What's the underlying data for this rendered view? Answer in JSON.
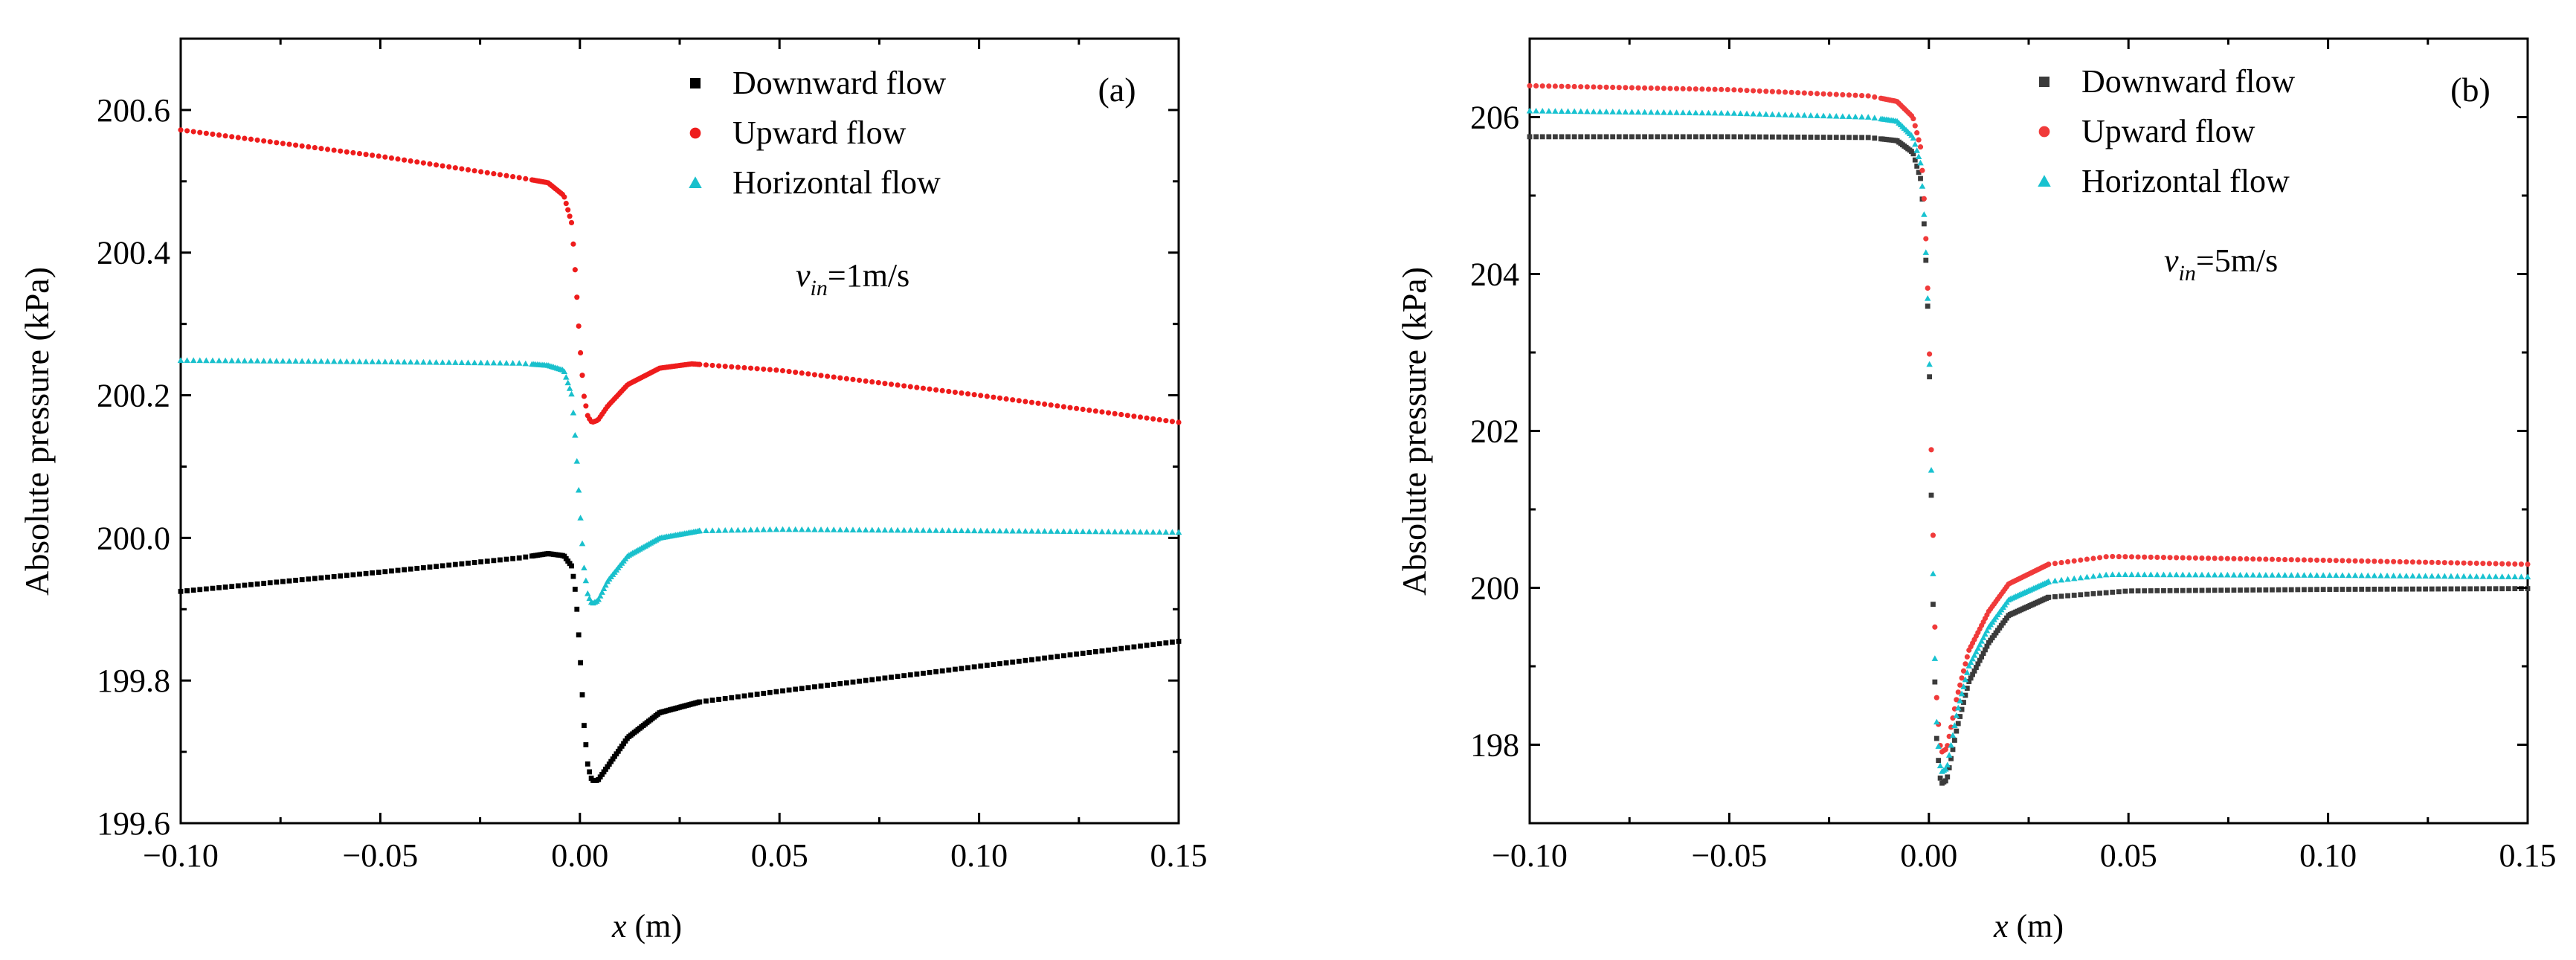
{
  "figure": {
    "panels": [
      {
        "panel_label": "(a)",
        "annotation": {
          "v": "v",
          "sub": "in",
          "rest": "=1m/s"
        },
        "yticks": [
          "199.6",
          "199.8",
          "200.0",
          "200.2",
          "200.4",
          "200.6"
        ],
        "xticks": [
          "−0.10",
          "−0.05",
          "0.00",
          "0.05",
          "0.10",
          "0.15"
        ]
      },
      {
        "panel_label": "(b)",
        "annotation": {
          "v": "v",
          "sub": "in",
          "rest": "=5m/s"
        },
        "yticks": [
          "198",
          "200",
          "202",
          "204",
          "206"
        ],
        "xticks": [
          "−0.10",
          "−0.05",
          "0.00",
          "0.05",
          "0.10",
          "0.15"
        ]
      }
    ]
  },
  "chart_data": [
    {
      "type": "scatter",
      "title": "",
      "xlabel": "x (m)",
      "ylabel": "Absolute pressure (kPa)",
      "xlim": [
        -0.1,
        0.15
      ],
      "ylim": [
        199.6,
        200.7
      ],
      "grid": false,
      "legend_position": "top-right",
      "series": [
        {
          "name": "Downward flow",
          "color": "#000000",
          "marker": "square",
          "points": [
            [
              -0.1,
              199.925
            ],
            [
              -0.05,
              199.952
            ],
            [
              -0.015,
              199.972
            ],
            [
              -0.008,
              199.978
            ],
            [
              -0.004,
              199.975
            ],
            [
              -0.002,
              199.96
            ],
            [
              -0.001,
              199.92
            ],
            [
              0.0,
              199.84
            ],
            [
              0.001,
              199.74
            ],
            [
              0.002,
              199.68
            ],
            [
              0.003,
              199.66
            ],
            [
              0.0045,
              199.66
            ],
            [
              0.007,
              199.68
            ],
            [
              0.012,
              199.72
            ],
            [
              0.02,
              199.755
            ],
            [
              0.03,
              199.77
            ],
            [
              0.05,
              199.785
            ],
            [
              0.1,
              199.82
            ],
            [
              0.15,
              199.855
            ]
          ]
        },
        {
          "name": "Upward flow",
          "color": "#ee1c1c",
          "marker": "circle",
          "points": [
            [
              -0.1,
              200.572
            ],
            [
              -0.05,
              200.535
            ],
            [
              -0.015,
              200.505
            ],
            [
              -0.008,
              200.498
            ],
            [
              -0.004,
              200.48
            ],
            [
              -0.002,
              200.44
            ],
            [
              -0.001,
              200.36
            ],
            [
              0.0,
              200.27
            ],
            [
              0.001,
              200.2
            ],
            [
              0.002,
              200.17
            ],
            [
              0.003,
              200.162
            ],
            [
              0.0045,
              200.165
            ],
            [
              0.007,
              200.185
            ],
            [
              0.012,
              200.215
            ],
            [
              0.02,
              200.238
            ],
            [
              0.028,
              200.244
            ],
            [
              0.05,
              200.235
            ],
            [
              0.1,
              200.2
            ],
            [
              0.15,
              200.162
            ]
          ]
        },
        {
          "name": "Horizontal flow",
          "color": "#19c0cc",
          "marker": "triangle",
          "points": [
            [
              -0.1,
              200.249
            ],
            [
              -0.05,
              200.247
            ],
            [
              -0.015,
              200.245
            ],
            [
              -0.008,
              200.242
            ],
            [
              -0.004,
              200.235
            ],
            [
              -0.002,
              200.2
            ],
            [
              -0.001,
              200.13
            ],
            [
              0.0,
              200.04
            ],
            [
              0.001,
              199.96
            ],
            [
              0.002,
              199.92
            ],
            [
              0.003,
              199.908
            ],
            [
              0.0045,
              199.912
            ],
            [
              0.007,
              199.94
            ],
            [
              0.012,
              199.975
            ],
            [
              0.02,
              200.0
            ],
            [
              0.03,
              200.01
            ],
            [
              0.05,
              200.012
            ],
            [
              0.1,
              200.01
            ],
            [
              0.15,
              200.008
            ]
          ]
        }
      ]
    },
    {
      "type": "scatter",
      "title": "",
      "xlabel": "x (m)",
      "ylabel": "Absolute pressure (kPa)",
      "xlim": [
        -0.1,
        0.15
      ],
      "ylim": [
        197,
        207
      ],
      "grid": false,
      "legend_position": "top-right",
      "series": [
        {
          "name": "Downward flow",
          "color": "#3b3b3b",
          "marker": "square",
          "points": [
            [
              -0.1,
              205.75
            ],
            [
              -0.05,
              205.75
            ],
            [
              -0.015,
              205.74
            ],
            [
              -0.008,
              205.7
            ],
            [
              -0.004,
              205.55
            ],
            [
              -0.002,
              205.2
            ],
            [
              -0.001,
              204.5
            ],
            [
              0.0,
              203.2
            ],
            [
              0.0005,
              201.5
            ],
            [
              0.001,
              199.9
            ],
            [
              0.0015,
              198.8
            ],
            [
              0.002,
              198.0
            ],
            [
              0.003,
              197.5
            ],
            [
              0.0045,
              197.55
            ],
            [
              0.007,
              198.2
            ],
            [
              0.01,
              198.8
            ],
            [
              0.015,
              199.3
            ],
            [
              0.02,
              199.65
            ],
            [
              0.03,
              199.88
            ],
            [
              0.05,
              199.96
            ],
            [
              0.1,
              199.98
            ],
            [
              0.15,
              199.99
            ]
          ]
        },
        {
          "name": "Upward flow",
          "color": "#f03a3a",
          "marker": "circle",
          "points": [
            [
              -0.1,
              206.4
            ],
            [
              -0.05,
              206.35
            ],
            [
              -0.015,
              206.27
            ],
            [
              -0.008,
              206.2
            ],
            [
              -0.004,
              206.0
            ],
            [
              -0.002,
              205.6
            ],
            [
              -0.001,
              204.8
            ],
            [
              0.0,
              203.4
            ],
            [
              0.0005,
              202.0
            ],
            [
              0.001,
              200.8
            ],
            [
              0.0015,
              199.5
            ],
            [
              0.002,
              198.5
            ],
            [
              0.003,
              197.9
            ],
            [
              0.0045,
              197.95
            ],
            [
              0.007,
              198.6
            ],
            [
              0.01,
              199.2
            ],
            [
              0.015,
              199.7
            ],
            [
              0.02,
              200.05
            ],
            [
              0.03,
              200.3
            ],
            [
              0.045,
              200.4
            ],
            [
              0.1,
              200.35
            ],
            [
              0.15,
              200.3
            ]
          ]
        },
        {
          "name": "Horizontal flow",
          "color": "#18c2d0",
          "marker": "triangle",
          "points": [
            [
              -0.1,
              206.08
            ],
            [
              -0.05,
              206.05
            ],
            [
              -0.015,
              206.0
            ],
            [
              -0.008,
              205.95
            ],
            [
              -0.004,
              205.75
            ],
            [
              -0.002,
              205.4
            ],
            [
              -0.001,
              204.6
            ],
            [
              0.0,
              203.3
            ],
            [
              0.0005,
              201.8
            ],
            [
              0.001,
              200.3
            ],
            [
              0.0015,
              199.1
            ],
            [
              0.002,
              198.2
            ],
            [
              0.003,
              197.65
            ],
            [
              0.0045,
              197.7
            ],
            [
              0.007,
              198.4
            ],
            [
              0.01,
              199.0
            ],
            [
              0.015,
              199.5
            ],
            [
              0.02,
              199.85
            ],
            [
              0.03,
              200.08
            ],
            [
              0.045,
              200.17
            ],
            [
              0.1,
              200.16
            ],
            [
              0.15,
              200.14
            ]
          ]
        }
      ]
    }
  ]
}
